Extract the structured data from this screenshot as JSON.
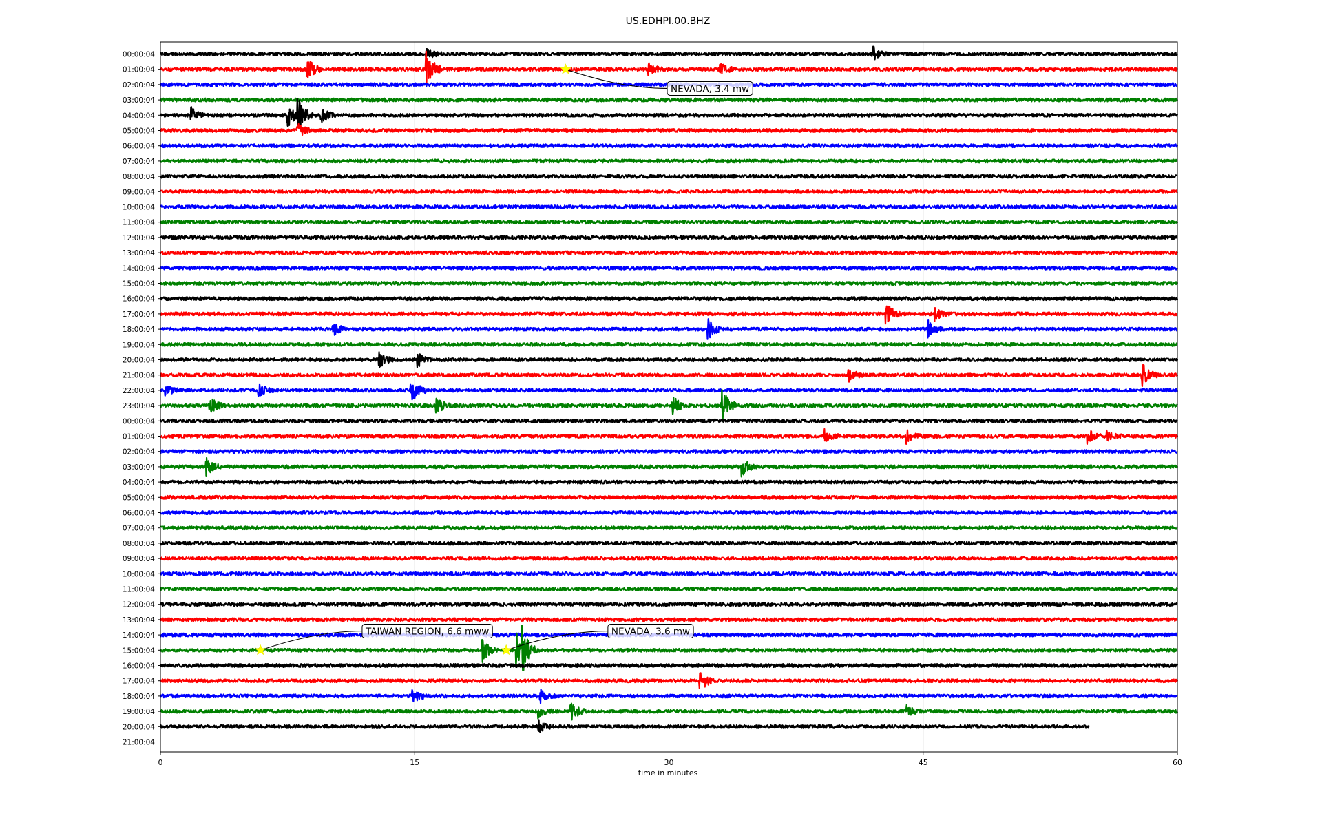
{
  "chart_data": {
    "type": "line",
    "title": "US.EDHPI.00.BHZ",
    "xlabel": "time in minutes",
    "ylabel": "",
    "xlim": [
      0,
      60
    ],
    "x_ticks": [
      0,
      15,
      30,
      45,
      60
    ],
    "grid": "vertical at x ticks",
    "trace_colors": [
      "#000000",
      "#ff0000",
      "#0000ff",
      "#008000"
    ],
    "row_labels": [
      "00:00:04",
      "01:00:04",
      "02:00:04",
      "03:00:04",
      "04:00:04",
      "05:00:04",
      "06:00:04",
      "07:00:04",
      "08:00:04",
      "09:00:04",
      "10:00:04",
      "11:00:04",
      "12:00:04",
      "13:00:04",
      "14:00:04",
      "15:00:04",
      "16:00:04",
      "17:00:04",
      "18:00:04",
      "19:00:04",
      "20:00:04",
      "21:00:04",
      "22:00:04",
      "23:00:04",
      "00:00:04",
      "01:00:04",
      "02:00:04",
      "03:00:04",
      "04:00:04",
      "05:00:04",
      "06:00:04",
      "07:00:04",
      "08:00:04",
      "09:00:04",
      "10:00:04",
      "11:00:04",
      "12:00:04",
      "13:00:04",
      "14:00:04",
      "15:00:04",
      "16:00:04",
      "17:00:04",
      "18:00:04",
      "19:00:04",
      "20:00:04",
      "21:00:04"
    ],
    "traces_count": 45,
    "last_trace_end_minute": 54.8,
    "bursts": [
      {
        "row": 0,
        "minute": 42.0,
        "amp": 0.6
      },
      {
        "row": 0,
        "minute": 15.7,
        "amp": 0.5
      },
      {
        "row": 1,
        "minute": 8.7,
        "amp": 0.8
      },
      {
        "row": 1,
        "minute": 15.7,
        "amp": 1.6
      },
      {
        "row": 1,
        "minute": 28.8,
        "amp": 0.5
      },
      {
        "row": 1,
        "minute": 33.0,
        "amp": 0.5
      },
      {
        "row": 4,
        "minute": 1.8,
        "amp": 0.6
      },
      {
        "row": 4,
        "minute": 7.5,
        "amp": 1.0
      },
      {
        "row": 4,
        "minute": 8.1,
        "amp": 1.4
      },
      {
        "row": 4,
        "minute": 9.5,
        "amp": 0.6
      },
      {
        "row": 5,
        "minute": 8.1,
        "amp": 0.6
      },
      {
        "row": 17,
        "minute": 42.8,
        "amp": 1.0
      },
      {
        "row": 17,
        "minute": 45.7,
        "amp": 0.5
      },
      {
        "row": 18,
        "minute": 10.2,
        "amp": 0.5
      },
      {
        "row": 18,
        "minute": 32.3,
        "amp": 0.8
      },
      {
        "row": 18,
        "minute": 45.3,
        "amp": 0.6
      },
      {
        "row": 20,
        "minute": 12.9,
        "amp": 0.6
      },
      {
        "row": 20,
        "minute": 15.2,
        "amp": 0.5
      },
      {
        "row": 21,
        "minute": 40.6,
        "amp": 0.5
      },
      {
        "row": 21,
        "minute": 57.9,
        "amp": 1.0
      },
      {
        "row": 22,
        "minute": 0.3,
        "amp": 0.5
      },
      {
        "row": 22,
        "minute": 5.8,
        "amp": 0.5
      },
      {
        "row": 22,
        "minute": 14.8,
        "amp": 1.0
      },
      {
        "row": 23,
        "minute": 2.9,
        "amp": 0.7
      },
      {
        "row": 23,
        "minute": 16.3,
        "amp": 0.6
      },
      {
        "row": 23,
        "minute": 30.2,
        "amp": 0.8
      },
      {
        "row": 23,
        "minute": 33.1,
        "amp": 1.5
      },
      {
        "row": 25,
        "minute": 39.2,
        "amp": 0.5
      },
      {
        "row": 25,
        "minute": 44.0,
        "amp": 0.5
      },
      {
        "row": 25,
        "minute": 54.7,
        "amp": 0.5
      },
      {
        "row": 25,
        "minute": 55.8,
        "amp": 0.4
      },
      {
        "row": 27,
        "minute": 2.7,
        "amp": 0.7
      },
      {
        "row": 27,
        "minute": 34.3,
        "amp": 0.7
      },
      {
        "row": 39,
        "minute": 19.0,
        "amp": 0.9
      },
      {
        "row": 39,
        "minute": 21.0,
        "amp": 1.3
      },
      {
        "row": 39,
        "minute": 21.3,
        "amp": 2.3
      },
      {
        "row": 41,
        "minute": 31.8,
        "amp": 1.0
      },
      {
        "row": 42,
        "minute": 14.9,
        "amp": 0.6
      },
      {
        "row": 42,
        "minute": 22.4,
        "amp": 0.5
      },
      {
        "row": 43,
        "minute": 22.3,
        "amp": 0.5
      },
      {
        "row": 43,
        "minute": 24.2,
        "amp": 0.8
      },
      {
        "row": 43,
        "minute": 44.0,
        "amp": 0.5
      },
      {
        "row": 44,
        "minute": 22.3,
        "amp": 0.5
      }
    ],
    "events": [
      {
        "row": 1,
        "minute": 23.9,
        "label": "NEVADA, 3.4 mw",
        "label_minute": 29.9,
        "label_row": 2.25
      },
      {
        "row": 39,
        "minute": 5.9,
        "label": "TAIWAN REGION, 6.6 mww",
        "label_minute": 11.9,
        "label_row": 37.75
      },
      {
        "row": 39,
        "minute": 20.4,
        "label": "NEVADA, 3.6 mw",
        "label_minute": 26.4,
        "label_row": 37.75
      }
    ]
  }
}
